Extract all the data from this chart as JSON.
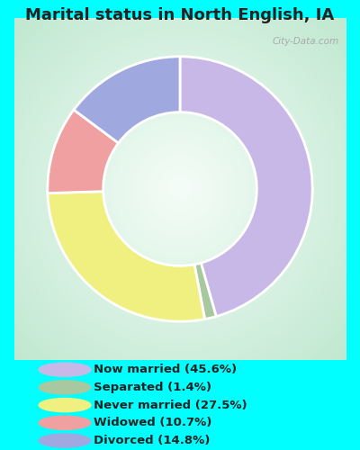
{
  "title": "Marital status in North English, IA",
  "title_fontsize": 13,
  "background_color": "#00FFFF",
  "chart_bg_gradient_center": "#f0faf5",
  "chart_bg_gradient_edge": "#c8e8d8",
  "categories": [
    "Now married",
    "Separated",
    "Never married",
    "Widowed",
    "Divorced"
  ],
  "values": [
    45.6,
    1.4,
    27.5,
    10.7,
    14.8
  ],
  "colors": [
    "#c8b8e8",
    "#a8c8a0",
    "#f0f080",
    "#f0a0a0",
    "#a0a8e0"
  ],
  "legend_labels": [
    "Now married (45.6%)",
    "Separated (1.4%)",
    "Never married (27.5%)",
    "Widowed (10.7%)",
    "Divorced (14.8%)"
  ],
  "watermark": "City-Data.com",
  "donut_width": 0.42
}
